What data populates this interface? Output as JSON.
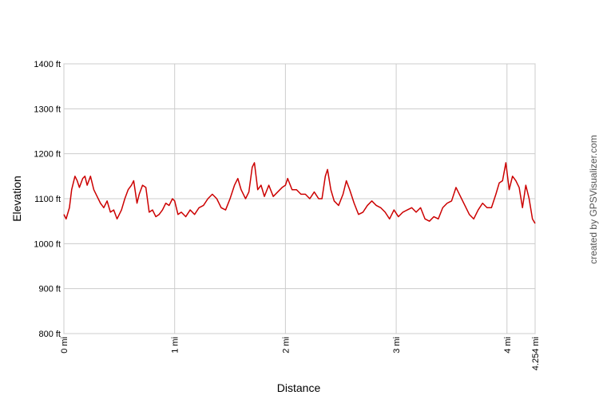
{
  "chart_data": {
    "type": "line",
    "xlabel": "Distance",
    "ylabel": "Elevation",
    "credit": "created by GPSVisualizer.com",
    "xlim": [
      0,
      4.254
    ],
    "ylim": [
      800,
      1400
    ],
    "xticks": [
      {
        "value": 0,
        "label": "0 mi"
      },
      {
        "value": 1,
        "label": "1 mi"
      },
      {
        "value": 2,
        "label": "2 mi"
      },
      {
        "value": 3,
        "label": "3 mi"
      },
      {
        "value": 4,
        "label": "4 mi"
      },
      {
        "value": 4.254,
        "label": "4.254 mi"
      }
    ],
    "yticks": [
      {
        "value": 800,
        "label": "800 ft"
      },
      {
        "value": 900,
        "label": "900 ft"
      },
      {
        "value": 1000,
        "label": "1000 ft"
      },
      {
        "value": 1100,
        "label": "1100 ft"
      },
      {
        "value": 1200,
        "label": "1200 ft"
      },
      {
        "value": 1300,
        "label": "1300 ft"
      },
      {
        "value": 1400,
        "label": "1400 ft"
      }
    ],
    "grid": true,
    "x": [
      0,
      0.02,
      0.05,
      0.07,
      0.1,
      0.12,
      0.14,
      0.17,
      0.19,
      0.21,
      0.24,
      0.27,
      0.3,
      0.33,
      0.36,
      0.39,
      0.42,
      0.45,
      0.48,
      0.52,
      0.55,
      0.58,
      0.61,
      0.63,
      0.66,
      0.68,
      0.71,
      0.74,
      0.77,
      0.8,
      0.83,
      0.86,
      0.89,
      0.92,
      0.95,
      0.98,
      1.0,
      1.03,
      1.06,
      1.1,
      1.14,
      1.18,
      1.22,
      1.26,
      1.3,
      1.34,
      1.38,
      1.42,
      1.46,
      1.5,
      1.54,
      1.57,
      1.6,
      1.64,
      1.67,
      1.7,
      1.72,
      1.75,
      1.78,
      1.81,
      1.85,
      1.89,
      1.93,
      1.97,
      2.0,
      2.02,
      2.06,
      2.1,
      2.14,
      2.18,
      2.22,
      2.26,
      2.3,
      2.33,
      2.36,
      2.38,
      2.41,
      2.44,
      2.48,
      2.52,
      2.55,
      2.58,
      2.62,
      2.66,
      2.7,
      2.74,
      2.78,
      2.82,
      2.86,
      2.9,
      2.94,
      2.98,
      3.02,
      3.06,
      3.1,
      3.14,
      3.18,
      3.22,
      3.26,
      3.3,
      3.34,
      3.38,
      3.42,
      3.46,
      3.5,
      3.54,
      3.58,
      3.62,
      3.66,
      3.7,
      3.74,
      3.78,
      3.82,
      3.86,
      3.9,
      3.93,
      3.96,
      3.99,
      4.02,
      4.05,
      4.08,
      4.11,
      4.14,
      4.17,
      4.2,
      4.23,
      4.254
    ],
    "series": [
      {
        "color": "#cc0000",
        "values": [
          1065,
          1055,
          1080,
          1120,
          1150,
          1140,
          1125,
          1145,
          1150,
          1130,
          1150,
          1120,
          1105,
          1090,
          1080,
          1095,
          1070,
          1075,
          1055,
          1075,
          1100,
          1120,
          1130,
          1140,
          1090,
          1110,
          1130,
          1125,
          1070,
          1075,
          1060,
          1065,
          1075,
          1090,
          1085,
          1100,
          1095,
          1065,
          1070,
          1060,
          1075,
          1065,
          1080,
          1085,
          1100,
          1110,
          1100,
          1080,
          1075,
          1100,
          1130,
          1145,
          1120,
          1100,
          1115,
          1170,
          1180,
          1120,
          1130,
          1105,
          1130,
          1105,
          1115,
          1125,
          1130,
          1145,
          1120,
          1120,
          1110,
          1110,
          1100,
          1115,
          1100,
          1100,
          1150,
          1165,
          1120,
          1095,
          1085,
          1110,
          1140,
          1120,
          1090,
          1065,
          1070,
          1085,
          1095,
          1085,
          1080,
          1070,
          1055,
          1075,
          1060,
          1070,
          1075,
          1080,
          1070,
          1080,
          1055,
          1050,
          1060,
          1055,
          1080,
          1090,
          1095,
          1125,
          1105,
          1085,
          1065,
          1055,
          1075,
          1090,
          1080,
          1080,
          1110,
          1135,
          1140,
          1180,
          1120,
          1150,
          1140,
          1125,
          1080,
          1130,
          1100,
          1055,
          1045
        ]
      }
    ]
  }
}
